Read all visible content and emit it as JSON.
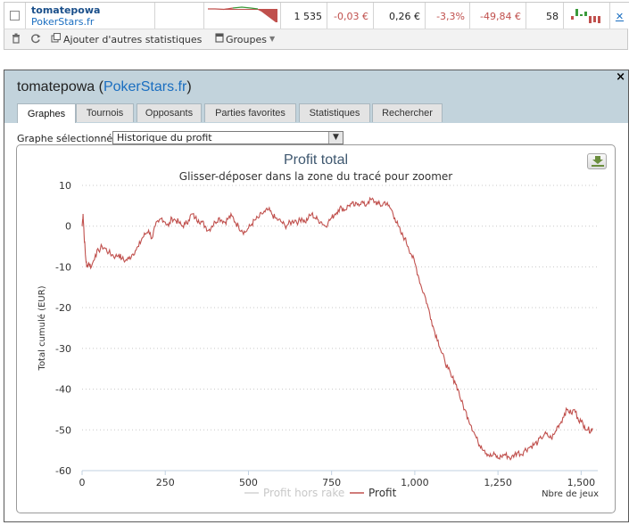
{
  "summary_row": {
    "player_name": "tomatepowa",
    "player_site": "PokerStars.fr",
    "hands": "1 535",
    "bb100": "-0,03 €",
    "stake": "0,26 €",
    "percent": "-3,3%",
    "profit": "-49,84 €",
    "count": "58",
    "remove_label": "✕",
    "colors": {
      "negative": "#c0504d",
      "positive": "#3a9a3a"
    }
  },
  "toolbar": {
    "add_stats_label": "Ajouter d'autres statistiques",
    "groups_label": "Groupes"
  },
  "panel": {
    "title_player": "tomatepowa",
    "title_site": "PokerStars.fr",
    "close_label": "×",
    "tabs": [
      {
        "label": "Graphes",
        "active": true
      },
      {
        "label": "Tournois"
      },
      {
        "label": "Opposants"
      },
      {
        "label": "Parties favorites"
      },
      {
        "label": "Statistiques"
      },
      {
        "label": "Rechercher"
      }
    ],
    "graph_selector_label": "Graphe sélectionné :",
    "graph_selector_value": "Historique du profit"
  },
  "chart_data": {
    "type": "line",
    "title": "Profit total",
    "subtitle": "Glisser-déposer dans la zone du tracé pour zoomer",
    "xlabel": "Nbre de jeux",
    "ylabel": "Total cumulé (EUR)",
    "xlim": [
      0,
      1550
    ],
    "ylim": [
      -60,
      10
    ],
    "x_ticks": [
      "0",
      "250",
      "500",
      "750",
      "1,000",
      "1,250",
      "1,500"
    ],
    "x_tick_values": [
      0,
      250,
      500,
      750,
      1000,
      1250,
      1500
    ],
    "y_ticks": [
      "10",
      "0",
      "-10",
      "-20",
      "-30",
      "-40",
      "-50",
      "-60"
    ],
    "y_tick_values": [
      10,
      0,
      -10,
      -20,
      -30,
      -40,
      -50,
      -60
    ],
    "grid": true,
    "legend": [
      "Profit hors rake",
      "Profit"
    ],
    "legend_placement": "bottom-center",
    "colors": {
      "profit": "#c0504d",
      "profit_hors_rake": "#d3d3d3",
      "title": "#3e576f"
    },
    "series": [
      {
        "name": "Profit",
        "points": [
          [
            0,
            0
          ],
          [
            3,
            3
          ],
          [
            6,
            -2
          ],
          [
            10,
            -7
          ],
          [
            14,
            -10
          ],
          [
            20,
            -9
          ],
          [
            28,
            -10
          ],
          [
            40,
            -7
          ],
          [
            50,
            -6
          ],
          [
            60,
            -5
          ],
          [
            70,
            -5.5
          ],
          [
            80,
            -6.5
          ],
          [
            90,
            -7
          ],
          [
            100,
            -7.5
          ],
          [
            110,
            -7
          ],
          [
            120,
            -8
          ],
          [
            130,
            -8.5
          ],
          [
            140,
            -8
          ],
          [
            150,
            -7
          ],
          [
            160,
            -6
          ],
          [
            170,
            -5
          ],
          [
            180,
            -3
          ],
          [
            190,
            -2
          ],
          [
            200,
            -1
          ],
          [
            210,
            -3
          ],
          [
            220,
            0
          ],
          [
            230,
            1
          ],
          [
            240,
            2
          ],
          [
            250,
            1
          ],
          [
            260,
            0
          ],
          [
            270,
            2
          ],
          [
            280,
            1.5
          ],
          [
            290,
            1
          ],
          [
            300,
            0
          ],
          [
            310,
            0.5
          ],
          [
            320,
            1.5
          ],
          [
            330,
            3
          ],
          [
            340,
            2
          ],
          [
            350,
            1.5
          ],
          [
            360,
            1
          ],
          [
            370,
            0
          ],
          [
            380,
            -1
          ],
          [
            390,
            0
          ],
          [
            400,
            1
          ],
          [
            410,
            2
          ],
          [
            420,
            1.5
          ],
          [
            430,
            1
          ],
          [
            440,
            2
          ],
          [
            450,
            2.5
          ],
          [
            460,
            1
          ],
          [
            470,
            0
          ],
          [
            480,
            -1
          ],
          [
            490,
            -1.5
          ],
          [
            500,
            -0.5
          ],
          [
            510,
            0.5
          ],
          [
            520,
            1.5
          ],
          [
            530,
            2
          ],
          [
            540,
            3
          ],
          [
            550,
            3.5
          ],
          [
            560,
            4
          ],
          [
            570,
            3
          ],
          [
            580,
            2
          ],
          [
            590,
            1.5
          ],
          [
            600,
            1
          ],
          [
            610,
            0
          ],
          [
            620,
            0.5
          ],
          [
            630,
            1
          ],
          [
            640,
            1.5
          ],
          [
            650,
            1
          ],
          [
            660,
            2
          ],
          [
            670,
            1
          ],
          [
            680,
            2
          ],
          [
            690,
            3
          ],
          [
            700,
            2
          ],
          [
            710,
            1.5
          ],
          [
            720,
            1
          ],
          [
            730,
            0
          ],
          [
            740,
            1
          ],
          [
            750,
            2
          ],
          [
            760,
            3
          ],
          [
            770,
            4
          ],
          [
            780,
            4.5
          ],
          [
            790,
            4
          ],
          [
            800,
            5
          ],
          [
            810,
            5.5
          ],
          [
            820,
            5
          ],
          [
            830,
            5.5
          ],
          [
            840,
            6
          ],
          [
            850,
            5
          ],
          [
            860,
            6
          ],
          [
            870,
            6.5
          ],
          [
            880,
            6
          ],
          [
            890,
            5.5
          ],
          [
            900,
            5
          ],
          [
            910,
            6
          ],
          [
            920,
            5
          ],
          [
            930,
            4
          ],
          [
            940,
            2
          ],
          [
            950,
            0
          ],
          [
            960,
            -2
          ],
          [
            970,
            -3
          ],
          [
            980,
            -5
          ],
          [
            990,
            -7
          ],
          [
            1000,
            -9
          ],
          [
            1010,
            -12
          ],
          [
            1020,
            -15
          ],
          [
            1030,
            -17
          ],
          [
            1040,
            -20
          ],
          [
            1050,
            -23
          ],
          [
            1060,
            -26
          ],
          [
            1070,
            -28
          ],
          [
            1080,
            -31
          ],
          [
            1090,
            -33
          ],
          [
            1100,
            -35
          ],
          [
            1110,
            -37
          ],
          [
            1120,
            -38
          ],
          [
            1130,
            -40
          ],
          [
            1140,
            -43
          ],
          [
            1150,
            -45
          ],
          [
            1160,
            -47
          ],
          [
            1170,
            -49
          ],
          [
            1180,
            -51
          ],
          [
            1190,
            -53
          ],
          [
            1200,
            -54
          ],
          [
            1210,
            -55
          ],
          [
            1220,
            -56
          ],
          [
            1230,
            -56.5
          ],
          [
            1240,
            -56
          ],
          [
            1250,
            -57
          ],
          [
            1260,
            -56.5
          ],
          [
            1270,
            -56
          ],
          [
            1280,
            -56.5
          ],
          [
            1290,
            -57
          ],
          [
            1300,
            -56
          ],
          [
            1310,
            -55.5
          ],
          [
            1320,
            -56
          ],
          [
            1330,
            -55
          ],
          [
            1340,
            -54.5
          ],
          [
            1350,
            -54
          ],
          [
            1360,
            -53.5
          ],
          [
            1370,
            -53
          ],
          [
            1380,
            -52
          ],
          [
            1390,
            -51
          ],
          [
            1400,
            -51.5
          ],
          [
            1410,
            -52
          ],
          [
            1420,
            -51
          ],
          [
            1430,
            -49
          ],
          [
            1440,
            -48
          ],
          [
            1450,
            -46
          ],
          [
            1460,
            -45
          ],
          [
            1470,
            -46
          ],
          [
            1480,
            -45
          ],
          [
            1490,
            -47
          ],
          [
            1500,
            -48
          ],
          [
            1510,
            -49
          ],
          [
            1520,
            -50
          ],
          [
            1530,
            -50
          ],
          [
            1535,
            -49.84
          ]
        ]
      }
    ]
  }
}
